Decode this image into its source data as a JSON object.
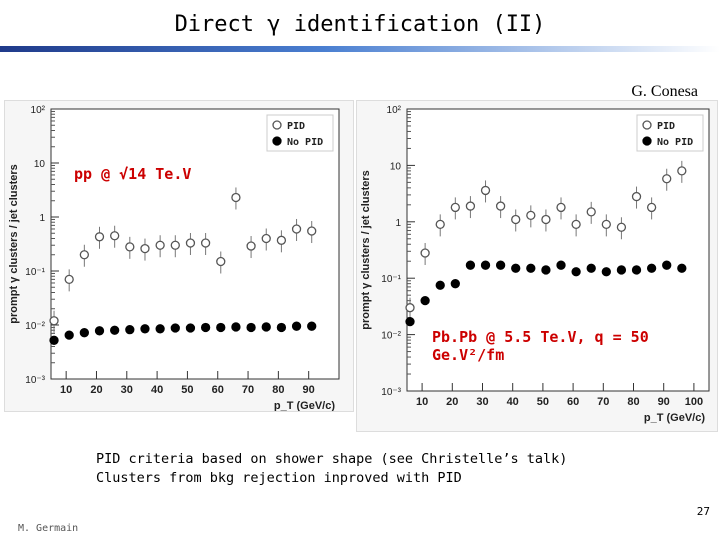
{
  "slide": {
    "title": "Direct γ identification (II)",
    "author": "G. Conesa",
    "notes": [
      "PID criteria based on shower shape (see Christelle’s talk)",
      "Clusters from bkg rejection inproved with PID"
    ],
    "page_number": "27",
    "footer": "M. Germain"
  },
  "colors": {
    "accent_label": "#cc0000",
    "title_bar": "#1f3a8a"
  },
  "chart_data": [
    {
      "type": "scatter",
      "annotation": "pp @ √14 Te.V",
      "xlabel": "p_T (GeV/c)",
      "ylabel": "prompt γ clusters / jet clusters",
      "xlim": [
        5,
        100
      ],
      "ylim_log10": [
        -3,
        2
      ],
      "x_ticks": [
        10,
        20,
        30,
        40,
        50,
        60,
        70,
        80,
        90
      ],
      "y_tick_labels": [
        "10²",
        "10",
        "1",
        "10⁻¹",
        "10⁻²",
        "10⁻³"
      ],
      "legend_position": "top-right",
      "series": [
        {
          "name": "PID",
          "marker": "open-circle",
          "x": [
            6,
            11,
            16,
            21,
            26,
            31,
            36,
            41,
            46,
            51,
            56,
            61,
            66,
            71,
            76,
            81,
            86,
            91
          ],
          "y": [
            0.012,
            0.07,
            0.2,
            0.43,
            0.45,
            0.28,
            0.26,
            0.3,
            0.3,
            0.33,
            0.33,
            0.15,
            2.3,
            0.29,
            0.4,
            0.37,
            0.6,
            0.55
          ]
        },
        {
          "name": "No PID",
          "marker": "filled-circle",
          "x": [
            6,
            11,
            16,
            21,
            26,
            31,
            36,
            41,
            46,
            51,
            56,
            61,
            66,
            71,
            76,
            81,
            86,
            91
          ],
          "y": [
            0.0052,
            0.0065,
            0.0072,
            0.0078,
            0.008,
            0.0082,
            0.0085,
            0.0085,
            0.0088,
            0.0088,
            0.009,
            0.009,
            0.0092,
            0.009,
            0.0092,
            0.009,
            0.0095,
            0.0095
          ]
        }
      ]
    },
    {
      "type": "scatter",
      "annotation": "Pb.Pb @ 5.5 Te.V, q = 50 Ge.V²/fm",
      "xlabel": "p_T (GeV/c)",
      "ylabel": "prompt γ clusters / jet clusters",
      "xlim": [
        5,
        105
      ],
      "ylim_log10": [
        -3,
        2
      ],
      "x_ticks": [
        10,
        20,
        30,
        40,
        50,
        60,
        70,
        80,
        90,
        100
      ],
      "y_tick_labels": [
        "10²",
        "10",
        "1",
        "10⁻¹",
        "10⁻²",
        "10⁻³"
      ],
      "legend_position": "top-right",
      "series": [
        {
          "name": "PID",
          "marker": "open-circle",
          "x": [
            6,
            11,
            16,
            21,
            26,
            31,
            36,
            41,
            46,
            51,
            56,
            61,
            66,
            71,
            76,
            81,
            86,
            91,
            96
          ],
          "y": [
            0.03,
            0.28,
            0.9,
            1.8,
            1.9,
            3.6,
            1.9,
            1.1,
            1.3,
            1.1,
            1.8,
            0.9,
            1.5,
            0.9,
            0.8,
            2.8,
            1.8,
            5.8,
            8.0
          ]
        },
        {
          "name": "No PID",
          "marker": "filled-circle",
          "x": [
            6,
            11,
            16,
            21,
            26,
            31,
            36,
            41,
            46,
            51,
            56,
            61,
            66,
            71,
            76,
            81,
            86,
            91,
            96
          ],
          "y": [
            0.017,
            0.04,
            0.075,
            0.08,
            0.17,
            0.17,
            0.17,
            0.15,
            0.15,
            0.14,
            0.17,
            0.13,
            0.15,
            0.13,
            0.14,
            0.14,
            0.15,
            0.17,
            0.15
          ]
        }
      ]
    }
  ]
}
